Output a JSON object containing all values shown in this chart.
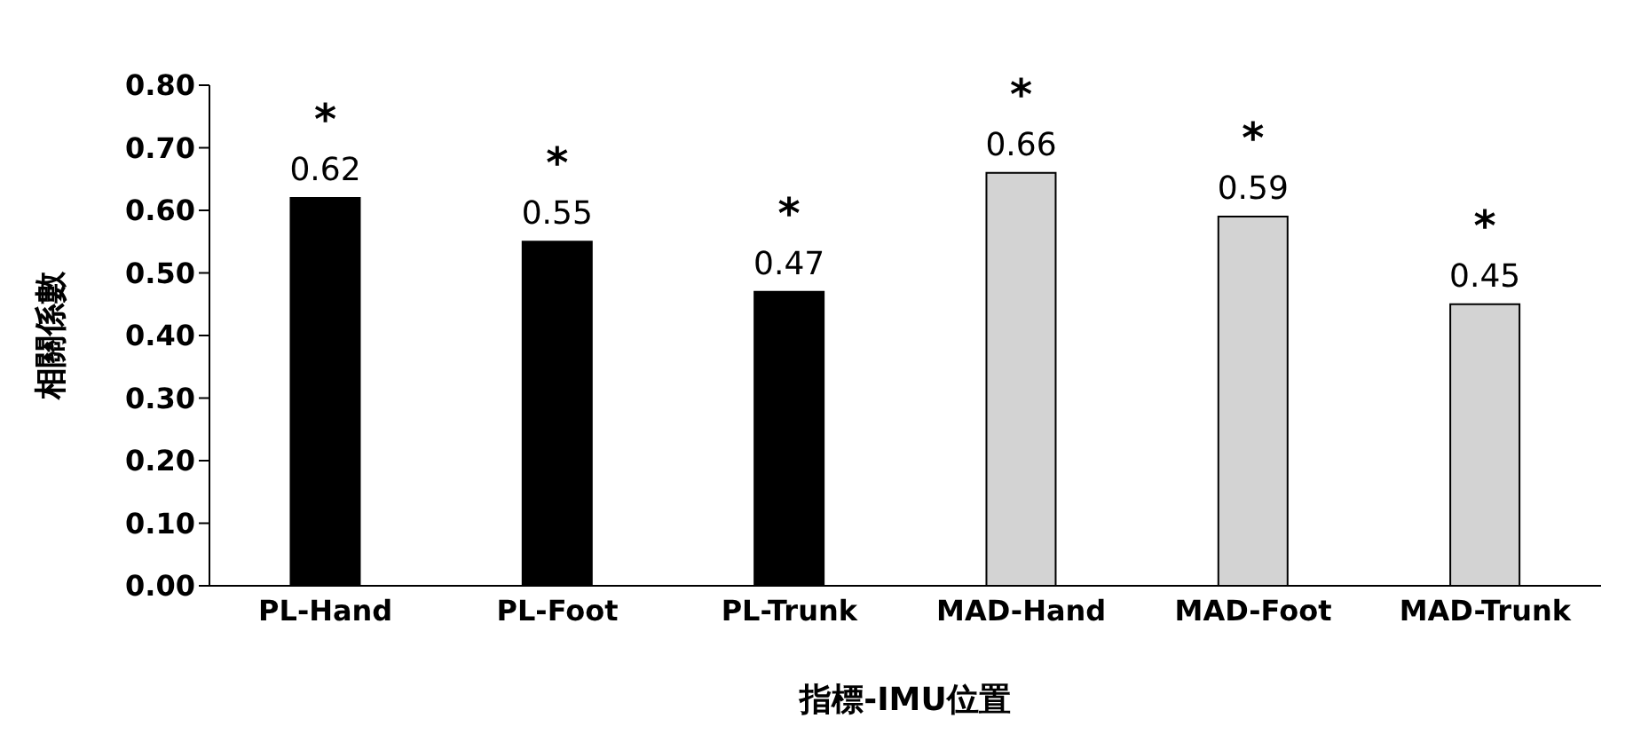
{
  "chart_data": {
    "type": "bar",
    "xlabel": "指標-IMU位置",
    "ylabel": "相關係數",
    "categories": [
      "PL-Hand",
      "PL-Foot",
      "PL-Trunk",
      "MAD-Hand",
      "MAD-Foot",
      "MAD-Trunk"
    ],
    "values": [
      0.62,
      0.55,
      0.47,
      0.66,
      0.59,
      0.45
    ],
    "colors": [
      "#000000",
      "#000000",
      "#000000",
      "#d3d3d3",
      "#d3d3d3",
      "#d3d3d3"
    ],
    "data_labels": true,
    "ylim": [
      0,
      0.8
    ],
    "yticks": [
      {
        "value": 0,
        "label": "0.00"
      },
      {
        "value": 0.1,
        "label": "0.10"
      },
      {
        "value": 0.2,
        "label": "0.20"
      },
      {
        "value": 0.3,
        "label": "0.30"
      },
      {
        "value": 0.4,
        "label": "0.40"
      },
      {
        "value": 0.5,
        "label": "0.50"
      },
      {
        "value": 0.6,
        "label": "0.60"
      },
      {
        "value": 0.7,
        "label": "0.70"
      },
      {
        "value": 0.8,
        "label": "0.80"
      }
    ],
    "grid": false,
    "legend": false,
    "annotations": [
      {
        "text": "*",
        "x": "PL-Hand",
        "y": 0.62
      },
      {
        "text": "*",
        "x": "PL-Foot",
        "y": 0.55
      },
      {
        "text": "*",
        "x": "PL-Trunk",
        "y": 0.47
      },
      {
        "text": "*",
        "x": "MAD-Hand",
        "y": 0.66
      },
      {
        "text": "*",
        "x": "MAD-Foot",
        "y": 0.59
      },
      {
        "text": "*",
        "x": "MAD-Trunk",
        "y": 0.45
      }
    ]
  }
}
